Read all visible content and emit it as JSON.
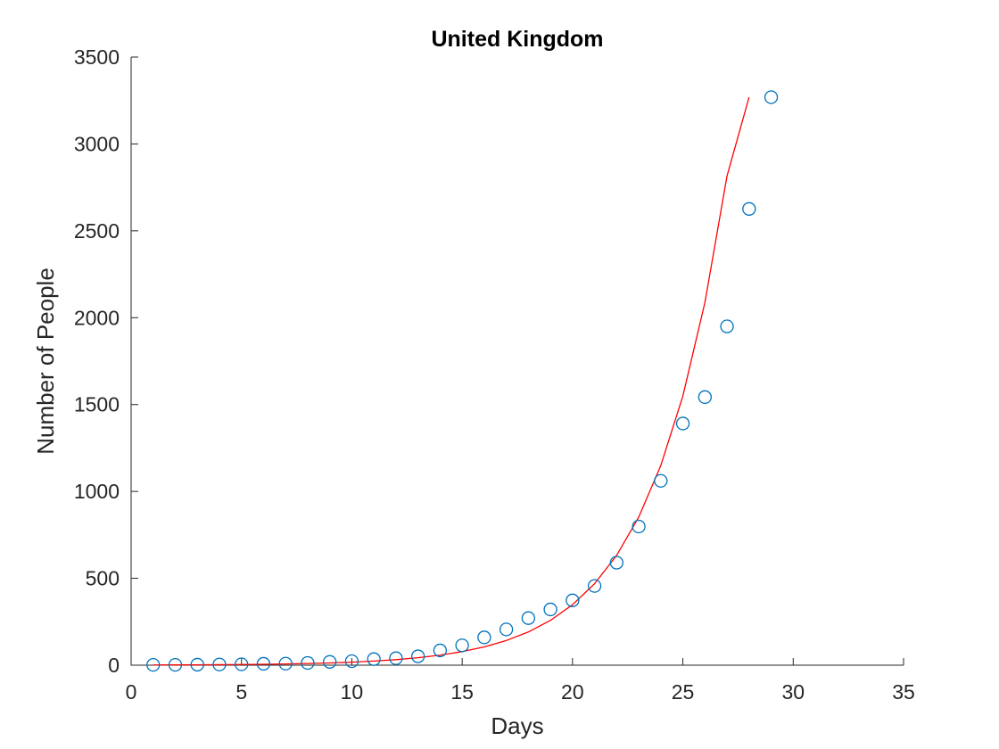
{
  "chart_data": {
    "type": "scatter",
    "title": "United Kingdom",
    "xlabel": "Days",
    "ylabel": "Number of People",
    "xlim": [
      0,
      35
    ],
    "ylim": [
      0,
      3500
    ],
    "xticks": [
      0,
      5,
      10,
      15,
      20,
      25,
      30,
      35
    ],
    "yticks": [
      0,
      500,
      1000,
      1500,
      2000,
      2500,
      3000,
      3500
    ],
    "grid": false,
    "legend": "none",
    "series": [
      {
        "kind": "markers",
        "marker": "circle",
        "color": "#0072BD",
        "x": [
          1,
          2,
          3,
          4,
          5,
          6,
          7,
          8,
          9,
          10,
          11,
          12,
          13,
          14,
          15,
          16,
          17,
          18,
          19,
          20,
          21,
          22,
          23,
          24,
          25,
          26,
          27,
          28,
          29,
          30,
          31
        ],
        "y": [
          2,
          2,
          3,
          4,
          5,
          8,
          9,
          13,
          19,
          23,
          35,
          40,
          51,
          85,
          114,
          160,
          206,
          271,
          321,
          373,
          456,
          590,
          798,
          1061,
          1391,
          1543,
          1950,
          2626,
          3269,
          null,
          null
        ]
      },
      {
        "kind": "line",
        "color": "#FF0000",
        "x": [
          1,
          2,
          3,
          4,
          5,
          6,
          7,
          8,
          9,
          10,
          11,
          12,
          13,
          14,
          15,
          16,
          17,
          18,
          19,
          20,
          21,
          22,
          23,
          24,
          25,
          26,
          27,
          28,
          29,
          30,
          31
        ],
        "y": [
          1.2,
          1.6,
          2.1,
          2.9,
          3.9,
          5.3,
          7.1,
          9.6,
          13,
          17.5,
          23.6,
          31.8,
          42.9,
          57.9,
          78,
          105,
          142,
          191,
          258,
          348,
          469,
          632,
          852,
          1149,
          1549,
          2088,
          2815,
          3269,
          null,
          null,
          null
        ]
      }
    ]
  }
}
